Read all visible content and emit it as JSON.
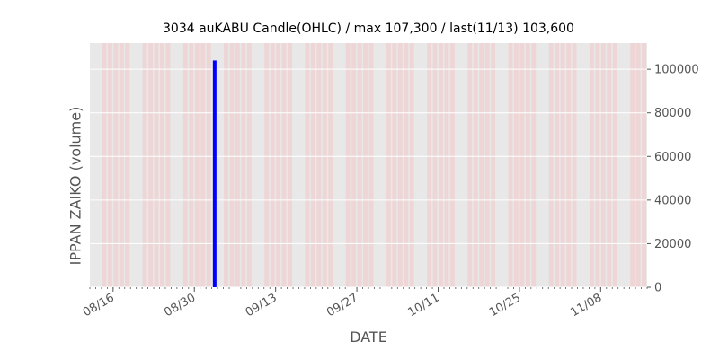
{
  "chart_data": {
    "type": "bar",
    "title": "3034 auKABU Candle(OHLC) / max 107,300 / last(11/13) 103,600",
    "xlabel": "DATE",
    "ylabel": "IPPAN ZAIKO (volume)",
    "ylim": [
      0,
      112000
    ],
    "xlim": [
      "2023-08-12",
      "2023-11-16"
    ],
    "yticks": [
      0,
      20000,
      40000,
      60000,
      80000,
      100000
    ],
    "ytick_labels": [
      "0",
      "20000",
      "40000",
      "60000",
      "80000",
      "100000"
    ],
    "xticks": [
      "2023-08-16",
      "2023-08-30",
      "2023-09-13",
      "2023-09-27",
      "2023-10-11",
      "2023-10-25",
      "2023-11-08"
    ],
    "xtick_labels": [
      "08/16",
      "08/30",
      "09/13",
      "09/27",
      "10/11",
      "10/25",
      "11/08"
    ],
    "grid": true,
    "series": [
      {
        "values": [
          {
            "date": "2023-09-02",
            "value": 104000,
            "color": "#0000ff"
          }
        ]
      }
    ],
    "colors": {
      "up": "#ff0000",
      "down": "#0000ff",
      "background": "#e8e8e8",
      "band": "#f0d0d0"
    }
  }
}
